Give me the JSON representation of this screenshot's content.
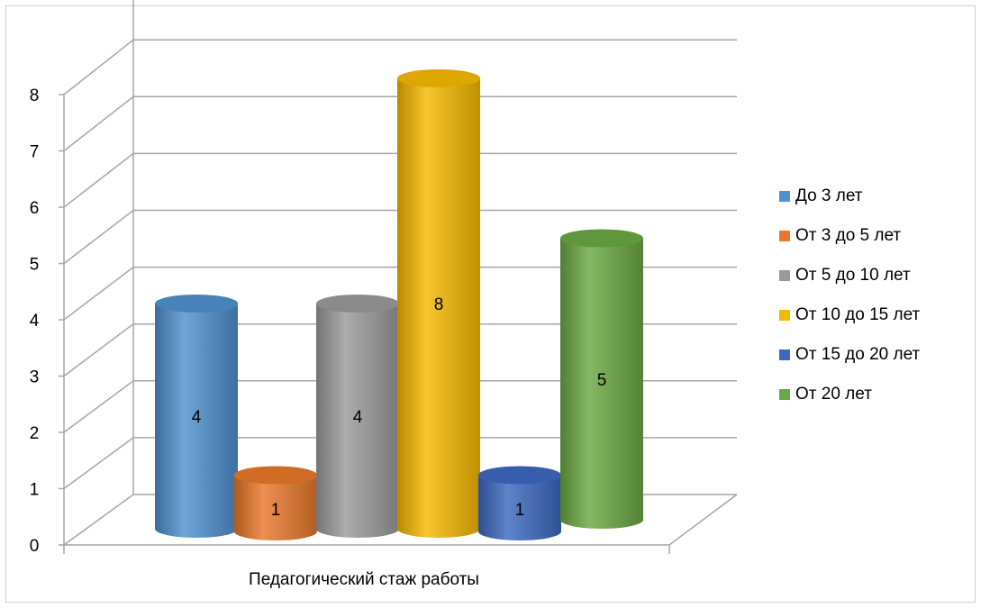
{
  "chart_data": {
    "type": "bar",
    "style": "3d-cylinder",
    "categories": [
      "Педагогический стаж работы"
    ],
    "series": [
      {
        "name": "До 3 лет",
        "values": [
          4
        ],
        "color": "#4f90cd"
      },
      {
        "name": "От 3 до 5 лет",
        "values": [
          1
        ],
        "color": "#e8782b"
      },
      {
        "name": "От 5 до 10 лет",
        "values": [
          4
        ],
        "color": "#9a9a9a"
      },
      {
        "name": "От 10 до 15 лет",
        "values": [
          8
        ],
        "color": "#f5b800"
      },
      {
        "name": "От 15 до 20 лет",
        "values": [
          1
        ],
        "color": "#3c68c0"
      },
      {
        "name": "От 20 лет",
        "values": [
          5
        ],
        "color": "#6aa843"
      }
    ],
    "yticks": [
      "0",
      "1",
      "2",
      "3",
      "4",
      "5",
      "6",
      "7",
      "8"
    ],
    "ylim": [
      0,
      8
    ],
    "grid": true,
    "legend_position": "right",
    "data_labels": true
  }
}
